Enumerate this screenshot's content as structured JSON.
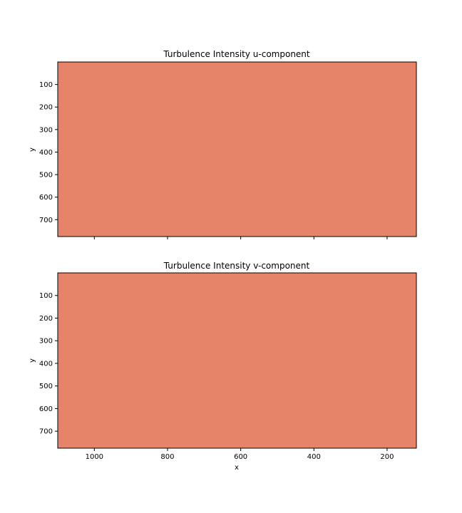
{
  "colors": {
    "field": "#e6846a",
    "frame": "#000000",
    "background": "#ffffff"
  },
  "chart_data": [
    {
      "type": "heatmap",
      "title": "Turbulence Intensity u-component",
      "xlabel": "",
      "ylabel": "y",
      "xlim": [
        1100,
        120
      ],
      "ylim": [
        775,
        0
      ],
      "x_inverted": true,
      "y_inverted": true,
      "xticks": [
        1000,
        800,
        600,
        400,
        200
      ],
      "xtick_labels_visible": false,
      "yticks": [
        100,
        200,
        300,
        400,
        500,
        600,
        700
      ],
      "grid": false,
      "fill": "uniform",
      "fill_color": "#e6846a"
    },
    {
      "type": "heatmap",
      "title": "Turbulence Intensity v-component",
      "xlabel": "x",
      "ylabel": "y",
      "xlim": [
        1100,
        120
      ],
      "ylim": [
        775,
        0
      ],
      "x_inverted": true,
      "y_inverted": true,
      "xticks": [
        1000,
        800,
        600,
        400,
        200
      ],
      "xtick_labels_visible": true,
      "yticks": [
        100,
        200,
        300,
        400,
        500,
        600,
        700
      ],
      "grid": false,
      "fill": "uniform",
      "fill_color": "#e6846a"
    }
  ]
}
